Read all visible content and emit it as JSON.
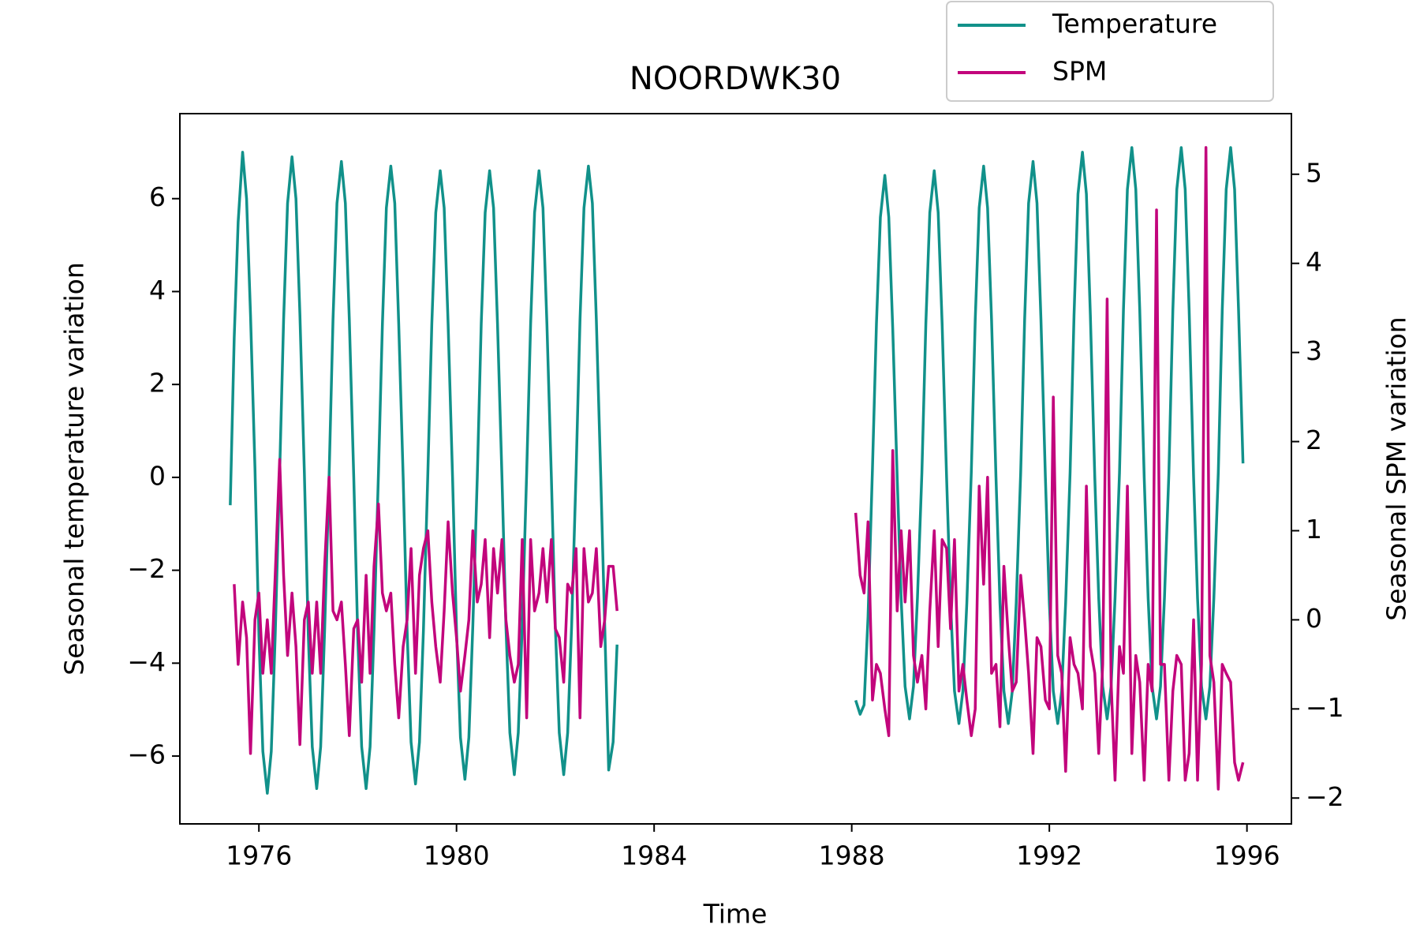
{
  "chart_data": {
    "type": "line",
    "title": "NOORDWK30",
    "x_label": "Time",
    "y_label": "Seasonal temperature variation",
    "y2_label": "Seasonal SPM variation",
    "x": [
      1975.42,
      1975.5,
      1975.58,
      1975.67,
      1975.75,
      1975.83,
      1975.92,
      1976,
      1976.08,
      1976.17,
      1976.25,
      1976.33,
      1976.42,
      1976.5,
      1976.58,
      1976.67,
      1976.75,
      1976.83,
      1976.92,
      1977,
      1977.08,
      1977.17,
      1977.25,
      1977.33,
      1977.42,
      1977.5,
      1977.58,
      1977.67,
      1977.75,
      1977.83,
      1977.92,
      1978,
      1978.08,
      1978.17,
      1978.25,
      1978.33,
      1978.42,
      1978.5,
      1978.58,
      1978.67,
      1978.75,
      1978.83,
      1978.92,
      1979,
      1979.08,
      1979.17,
      1979.25,
      1979.33,
      1979.42,
      1979.5,
      1979.58,
      1979.67,
      1979.75,
      1979.83,
      1979.92,
      1980,
      1980.08,
      1980.17,
      1980.25,
      1980.33,
      1980.42,
      1980.5,
      1980.58,
      1980.67,
      1980.75,
      1980.83,
      1980.92,
      1981,
      1981.08,
      1981.17,
      1981.25,
      1981.33,
      1981.42,
      1981.5,
      1981.58,
      1981.67,
      1981.75,
      1981.83,
      1981.92,
      1982,
      1982.08,
      1982.17,
      1982.25,
      1982.33,
      1982.42,
      1982.5,
      1982.58,
      1982.67,
      1982.75,
      1982.83,
      1982.92,
      1983,
      1983.08,
      1983.17,
      1983.25,
      1985.5,
      1988.08,
      1988.17,
      1988.25,
      1988.33,
      1988.42,
      1988.5,
      1988.58,
      1988.67,
      1988.75,
      1988.83,
      1988.92,
      1989,
      1989.08,
      1989.17,
      1989.25,
      1989.33,
      1989.42,
      1989.5,
      1989.58,
      1989.67,
      1989.75,
      1989.83,
      1989.92,
      1990,
      1990.08,
      1990.17,
      1990.25,
      1990.33,
      1990.42,
      1990.5,
      1990.58,
      1990.67,
      1990.75,
      1990.83,
      1990.92,
      1991,
      1991.08,
      1991.17,
      1991.25,
      1991.33,
      1991.42,
      1991.5,
      1991.58,
      1991.67,
      1991.75,
      1991.83,
      1991.92,
      1992,
      1992.08,
      1992.17,
      1992.25,
      1992.33,
      1992.42,
      1992.5,
      1992.58,
      1992.67,
      1992.75,
      1992.83,
      1992.92,
      1993,
      1993.08,
      1993.17,
      1993.25,
      1993.33,
      1993.42,
      1993.5,
      1993.58,
      1993.67,
      1993.75,
      1993.83,
      1993.92,
      1994,
      1994.08,
      1994.17,
      1994.25,
      1994.33,
      1994.42,
      1994.5,
      1994.58,
      1994.67,
      1994.75,
      1994.83,
      1994.92,
      1995,
      1995.08,
      1995.17,
      1995.25,
      1995.33,
      1995.42,
      1995.5,
      1995.58,
      1995.67,
      1995.75,
      1995.83,
      1995.92
    ],
    "series": [
      {
        "name": "Temperature",
        "color": "#11918a",
        "axis": "y",
        "values": [
          -0.6,
          3.0,
          5.5,
          7.0,
          6.0,
          3.5,
          0.2,
          -3.4,
          -5.9,
          -6.8,
          -5.9,
          -3.4,
          0.1,
          3.4,
          5.9,
          6.9,
          6.0,
          3.5,
          0.1,
          -3.4,
          -5.8,
          -6.7,
          -5.8,
          -3.3,
          0.0,
          3.4,
          5.9,
          6.8,
          5.9,
          3.4,
          0.0,
          -3.4,
          -5.8,
          -6.7,
          -5.8,
          -3.3,
          0.1,
          3.3,
          5.8,
          6.7,
          5.9,
          3.3,
          0.0,
          -3.3,
          -5.7,
          -6.6,
          -5.7,
          -3.3,
          0.1,
          3.3,
          5.7,
          6.6,
          5.8,
          3.3,
          0.0,
          -3.3,
          -5.6,
          -6.5,
          -5.6,
          -3.2,
          0.0,
          3.3,
          5.7,
          6.6,
          5.8,
          3.3,
          0.0,
          -3.2,
          -5.5,
          -6.4,
          -5.5,
          -3.2,
          0.1,
          3.3,
          5.7,
          6.6,
          5.8,
          3.3,
          0.0,
          -3.2,
          -5.5,
          -6.4,
          -5.5,
          -3.2,
          0.1,
          3.4,
          5.8,
          6.7,
          5.9,
          3.4,
          0.0,
          -3.2,
          -6.3,
          -5.7,
          -3.6,
          null,
          -4.8,
          -5.1,
          -4.9,
          -3.0,
          0.2,
          3.3,
          5.6,
          6.5,
          5.6,
          3.2,
          0.0,
          -2.6,
          -4.5,
          -5.2,
          -4.5,
          -2.6,
          0.1,
          3.3,
          5.7,
          6.6,
          5.7,
          3.3,
          0.0,
          -2.7,
          -4.6,
          -5.3,
          -4.6,
          -2.7,
          0.1,
          3.4,
          5.8,
          6.7,
          5.8,
          3.4,
          0.0,
          -2.7,
          -4.6,
          -5.3,
          -4.6,
          -2.7,
          0.1,
          3.4,
          5.9,
          6.8,
          5.9,
          3.4,
          0.0,
          -2.7,
          -4.6,
          -5.3,
          -4.6,
          -2.7,
          0.1,
          3.5,
          6.1,
          7.0,
          6.1,
          3.5,
          0.0,
          -2.6,
          -4.5,
          -5.2,
          -4.5,
          -2.6,
          0.1,
          3.6,
          6.2,
          7.1,
          6.2,
          3.6,
          0.0,
          -2.6,
          -4.5,
          -5.2,
          -4.5,
          -2.6,
          0.1,
          3.6,
          6.2,
          7.1,
          6.2,
          3.6,
          0.0,
          -2.6,
          -4.5,
          -5.2,
          -4.5,
          -2.6,
          0.1,
          3.6,
          6.2,
          7.1,
          6.2,
          3.6,
          0.3
        ]
      },
      {
        "name": "SPM",
        "color": "#c2057c",
        "axis": "y2",
        "values": [
          null,
          0.4,
          -0.5,
          0.2,
          -0.2,
          -1.5,
          0.0,
          0.3,
          -0.6,
          0.0,
          -0.6,
          0.5,
          1.8,
          0.5,
          -0.4,
          0.3,
          -0.3,
          -1.4,
          0.0,
          0.2,
          -0.6,
          0.2,
          -0.6,
          0.6,
          1.6,
          0.1,
          0.0,
          0.2,
          -0.5,
          -1.3,
          -0.1,
          0.0,
          -0.7,
          0.5,
          -0.6,
          0.6,
          1.3,
          0.3,
          0.1,
          0.3,
          -0.5,
          -1.1,
          -0.3,
          0.0,
          0.8,
          -0.6,
          0.5,
          0.8,
          1.0,
          0.2,
          -0.3,
          -0.7,
          0.1,
          1.1,
          0.3,
          -0.2,
          -0.8,
          -0.4,
          0.0,
          1.0,
          0.2,
          0.4,
          0.9,
          -0.2,
          0.8,
          0.3,
          0.9,
          0.0,
          -0.4,
          -0.7,
          -0.5,
          0.9,
          -1.1,
          0.9,
          0.1,
          0.3,
          0.8,
          0.2,
          0.9,
          -0.1,
          -0.2,
          -0.7,
          0.4,
          0.3,
          0.8,
          -1.1,
          0.8,
          0.2,
          0.3,
          0.8,
          -0.3,
          0.0,
          0.6,
          0.6,
          0.1,
          null,
          1.2,
          0.5,
          0.3,
          1.1,
          -0.9,
          -0.5,
          -0.6,
          -1.0,
          -1.3,
          1.9,
          0.1,
          1.0,
          0.2,
          1.0,
          -0.4,
          -0.7,
          -0.4,
          -1.0,
          0.1,
          1.0,
          -0.3,
          0.9,
          0.8,
          -0.1,
          0.9,
          -0.8,
          -0.5,
          -0.9,
          -1.3,
          -1.0,
          1.5,
          0.4,
          1.6,
          -0.6,
          -0.5,
          -1.2,
          0.6,
          -0.2,
          -0.8,
          -0.7,
          0.5,
          0.0,
          -0.6,
          -1.5,
          -0.2,
          -0.3,
          -0.9,
          -1.0,
          2.5,
          -0.4,
          -0.6,
          -1.7,
          -0.2,
          -0.5,
          -0.6,
          -1.0,
          1.5,
          -0.3,
          -0.6,
          -1.5,
          -0.5,
          3.6,
          -0.7,
          -1.8,
          -0.3,
          -0.6,
          1.5,
          -1.5,
          -0.4,
          -0.7,
          -1.8,
          -0.5,
          -0.8,
          4.6,
          -0.5,
          -0.5,
          -1.8,
          -0.8,
          -0.4,
          -0.5,
          -1.8,
          -1.5,
          0.0,
          -1.8,
          -0.5,
          5.3,
          -0.4,
          -0.7,
          -1.9,
          -0.5,
          -0.6,
          -0.7,
          -1.6,
          -1.8,
          -1.6
        ]
      }
    ],
    "xlim": [
      1974.4,
      1996.9
    ],
    "xticks": [
      1976,
      1980,
      1984,
      1988,
      1992,
      1996
    ],
    "ylim": [
      -7.46,
      7.83
    ],
    "yticks": [
      {
        "value": -6,
        "label": "−6"
      },
      {
        "value": -4,
        "label": "−4"
      },
      {
        "value": -2,
        "label": "−2"
      },
      0,
      2,
      4,
      6
    ],
    "y2lim": [
      -2.29,
      5.68
    ],
    "y2ticks": [
      {
        "value": -2,
        "label": "−2"
      },
      {
        "value": -1,
        "label": "−1"
      },
      0,
      1,
      2,
      3,
      4,
      5
    ]
  }
}
